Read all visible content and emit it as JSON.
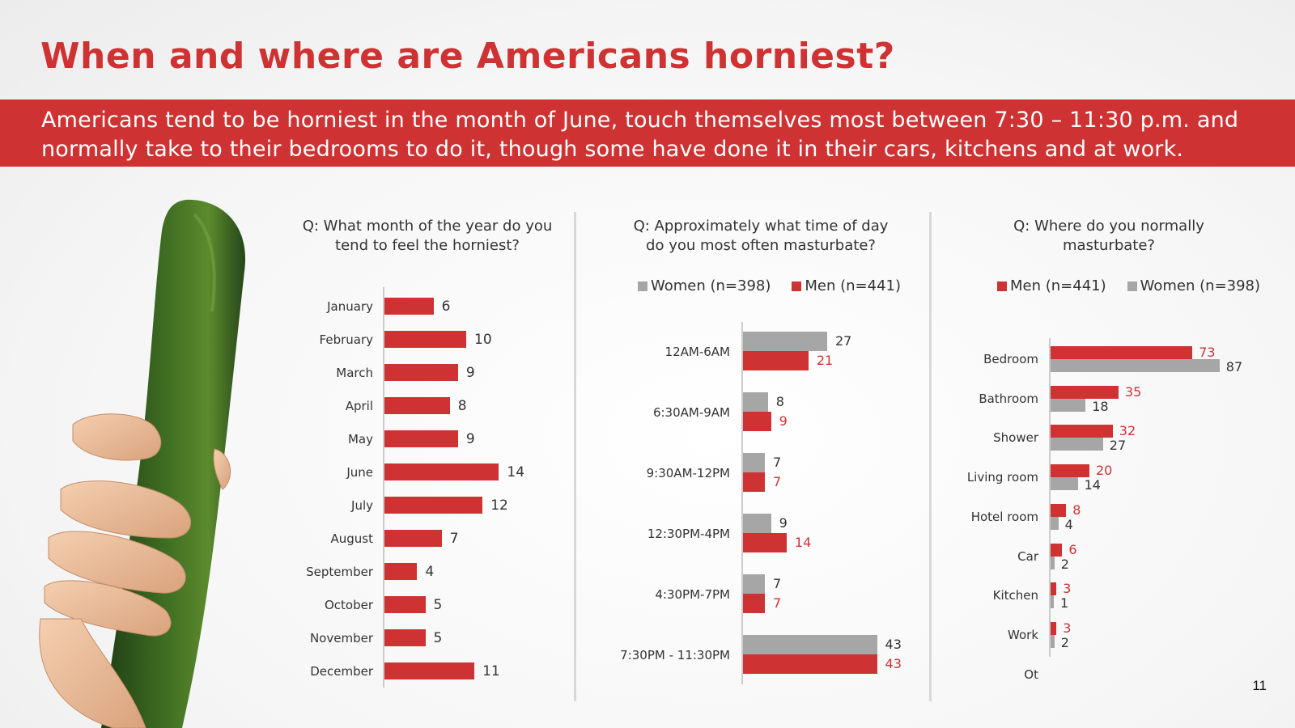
{
  "title": "When and where are Americans horniest?",
  "subtitle": "Americans tend to be horniest in the month of June, touch themselves most between 7:30 – 11:30 p.m. and normally take to their bedrooms to do it, though some have done it in their cars, kitchens and at work.",
  "page_number": "11",
  "colors": {
    "accent": "#cf3232",
    "men": "#cf3232",
    "women": "#a6a6a6",
    "title": "#cf3232"
  },
  "image": {
    "icon": "cucumber-held-by-wooden-hand-icon"
  },
  "chart_data": [
    {
      "type": "bar",
      "orientation": "horizontal",
      "title": "Q: What month of the year do you tend to feel the horniest?",
      "categories": [
        "January",
        "February",
        "March",
        "April",
        "May",
        "June",
        "July",
        "August",
        "September",
        "October",
        "November",
        "December"
      ],
      "values": [
        6,
        10,
        9,
        8,
        9,
        14,
        12,
        7,
        4,
        5,
        5,
        11
      ],
      "xlim": [
        0,
        20
      ]
    },
    {
      "type": "bar",
      "orientation": "horizontal",
      "title": "Q: Approximately what time of day do you most often masturbate?",
      "categories": [
        "12AM-6AM",
        "6:30AM-9AM",
        "9:30AM-12PM",
        "12:30PM-4PM",
        "4:30PM-7PM",
        "7:30PM - 11:30PM"
      ],
      "series": [
        {
          "name": "Women (n=398)",
          "values": [
            27,
            8,
            7,
            9,
            7,
            43
          ]
        },
        {
          "name": "Men (n=441)",
          "values": [
            21,
            9,
            7,
            14,
            7,
            43
          ]
        }
      ],
      "legend": "top",
      "xlim": [
        0,
        60
      ]
    },
    {
      "type": "bar",
      "orientation": "horizontal",
      "title": "Q: Where do you normally masturbate?",
      "categories": [
        "Bedroom",
        "Bathroom",
        "Shower",
        "Living room",
        "Hotel room",
        "Car",
        "Kitchen",
        "Work",
        "Ot"
      ],
      "series": [
        {
          "name": "Men (n=441)",
          "values": [
            73,
            35,
            32,
            20,
            8,
            6,
            3,
            3,
            null
          ]
        },
        {
          "name": "Women (n=398)",
          "values": [
            87,
            18,
            27,
            14,
            4,
            2,
            1,
            2,
            null
          ]
        }
      ],
      "legend": "top",
      "xlim": [
        0,
        90
      ]
    }
  ]
}
